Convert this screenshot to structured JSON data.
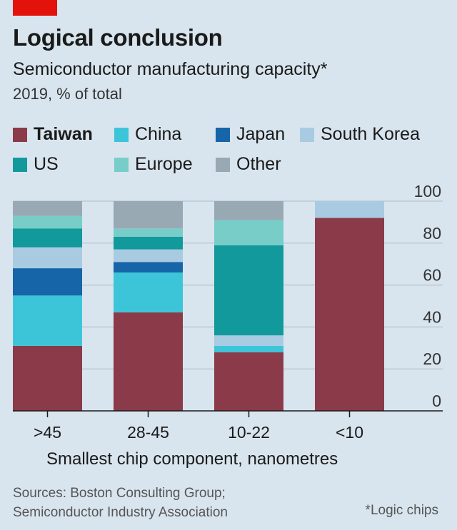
{
  "title": "Logical conclusion",
  "subtitle": "Semiconductor manufacturing capacity*",
  "unit": "2019, % of total",
  "x_axis_title": "Smallest chip component, nanometres",
  "sources": [
    "Sources: Boston Consulting Group;",
    "Semiconductor Industry Association"
  ],
  "footnote": "*Logic chips",
  "colors": {
    "background": "#d8e5ee",
    "brand_red": "#e3120b",
    "Taiwan": "#8b3a4a",
    "China": "#3cc5d8",
    "Japan": "#1565a8",
    "South Korea": "#a9cbe2",
    "US": "#12999b",
    "Europe": "#78cdc8",
    "Other": "#99a9b4"
  },
  "chart_data": {
    "type": "bar",
    "stacked": true,
    "categories": [
      ">45",
      "28-45",
      "10-22",
      "<10"
    ],
    "ylim": [
      0,
      100
    ],
    "yticks": [
      0,
      20,
      40,
      60,
      80,
      100
    ],
    "y_axis_side": "right",
    "grid": true,
    "legend_placement": "top",
    "series": [
      {
        "name": "Taiwan",
        "values": [
          31,
          47,
          28,
          92
        ]
      },
      {
        "name": "China",
        "values": [
          24,
          19,
          3,
          0
        ]
      },
      {
        "name": "Japan",
        "values": [
          13,
          5,
          0,
          0
        ]
      },
      {
        "name": "South Korea",
        "values": [
          10,
          6,
          5,
          8
        ]
      },
      {
        "name": "US",
        "values": [
          9,
          6,
          43,
          0
        ]
      },
      {
        "name": "Europe",
        "values": [
          6,
          4,
          12,
          0
        ]
      },
      {
        "name": "Other",
        "values": [
          7,
          13,
          9,
          0
        ]
      }
    ],
    "legend_order": [
      "Taiwan",
      "China",
      "Japan",
      "South Korea",
      "US",
      "Europe",
      "Other"
    ],
    "legend_bold": [
      "Taiwan"
    ]
  }
}
